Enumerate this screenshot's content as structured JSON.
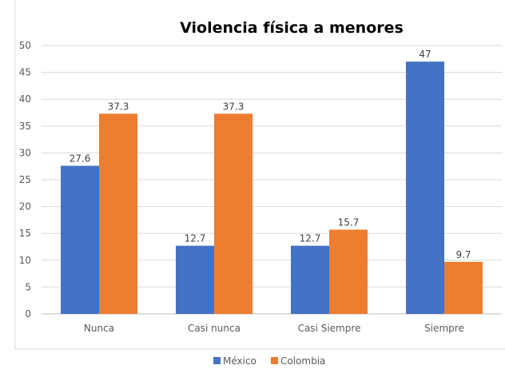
{
  "chart_data": {
    "type": "bar",
    "title": "Violencia física a menores",
    "categories": [
      "Nunca",
      "Casi nunca",
      "Casi Siempre",
      "Siempre"
    ],
    "series": [
      {
        "name": "México",
        "values": [
          27.6,
          12.7,
          12.7,
          47
        ],
        "color": "#4472C4"
      },
      {
        "name": "Colombia",
        "values": [
          37.3,
          37.3,
          15.7,
          9.7
        ],
        "color": "#ED7D31"
      }
    ],
    "ylim": [
      0,
      50
    ],
    "yticks": [
      0,
      5,
      10,
      15,
      20,
      25,
      30,
      35,
      40,
      45,
      50
    ],
    "grid": true,
    "legend_position": "bottom",
    "data_labels": true
  }
}
